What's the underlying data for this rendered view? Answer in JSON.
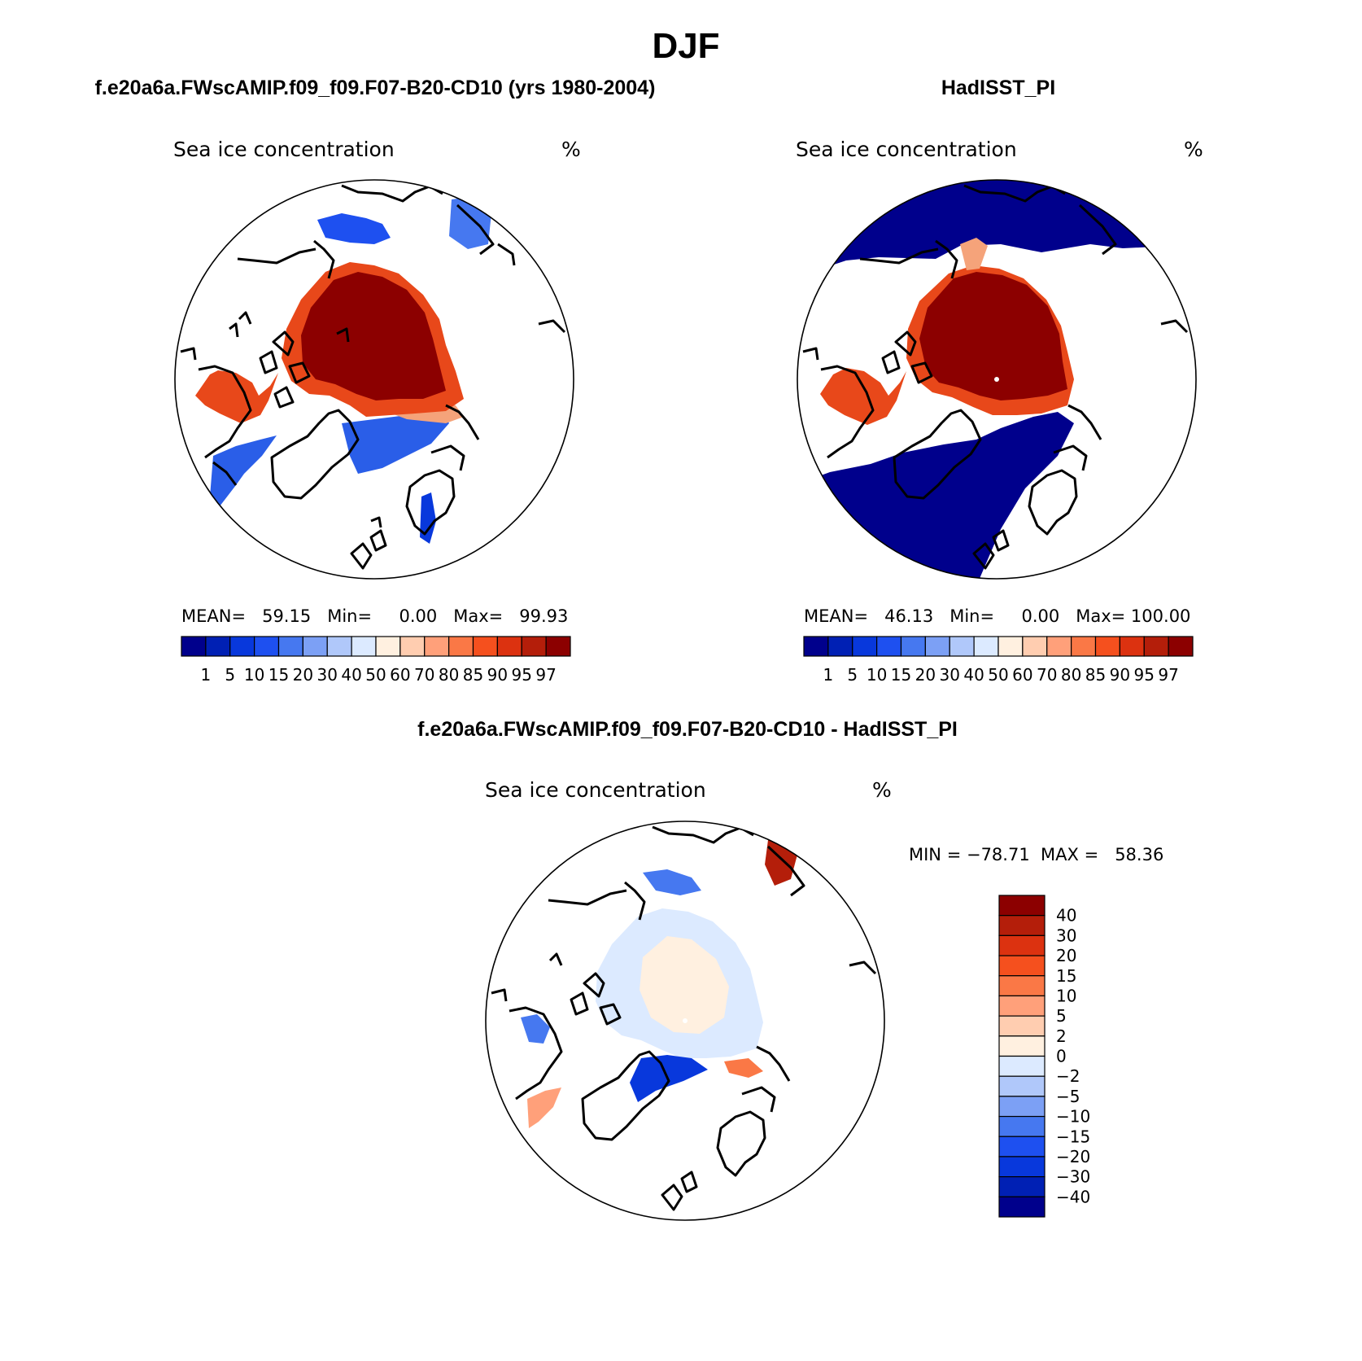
{
  "figure": {
    "title": "DJF"
  },
  "panels": [
    {
      "header": "f.e20a6a.FWscAMIP.f09_f09.F07-B20-CD10 (yrs 1980-2004)",
      "variable": "Sea ice concentration",
      "units": "%",
      "stats_text": "MEAN=   59.15   Min=     0.00   Max=   99.93"
    },
    {
      "header": "HadISST_PI",
      "variable": "Sea ice concentration",
      "units": "%",
      "stats_text": "MEAN=   46.13   Min=     0.00   Max= 100.00"
    },
    {
      "header": "f.e20a6a.FWscAMIP.f09_f09.F07-B20-CD10 - HadISST_PI",
      "variable": "Sea ice concentration",
      "units": "%",
      "stats_text": "MIN = −78.71  MAX =   58.36"
    }
  ],
  "colorbars": {
    "concentration": {
      "labels": [
        "1",
        "5",
        "10",
        "15",
        "20",
        "30",
        "40",
        "50",
        "60",
        "70",
        "80",
        "85",
        "90",
        "95",
        "97"
      ],
      "colors": [
        "#00008c",
        "#0020b4",
        "#0838dc",
        "#1e50f0",
        "#4678f0",
        "#7ca0f5",
        "#b0c8fa",
        "#dceaff",
        "#fff0e0",
        "#ffcdb0",
        "#ffa07a",
        "#fa7846",
        "#f5501e",
        "#dc3210",
        "#b41e0a",
        "#8c0000"
      ]
    },
    "difference": {
      "labels": [
        "40",
        "30",
        "20",
        "15",
        "10",
        "5",
        "2",
        "0",
        "−2",
        "−5",
        "−10",
        "−15",
        "−20",
        "−30",
        "−40"
      ],
      "colors": [
        "#8c0000",
        "#b41e0a",
        "#dc3210",
        "#f5501e",
        "#fa7846",
        "#ffa07a",
        "#ffcdb0",
        "#fff0e0",
        "#dceaff",
        "#b0c8fa",
        "#7ca0f5",
        "#4678f0",
        "#1e50f0",
        "#0838dc",
        "#0020b4",
        "#00008c"
      ]
    }
  }
}
